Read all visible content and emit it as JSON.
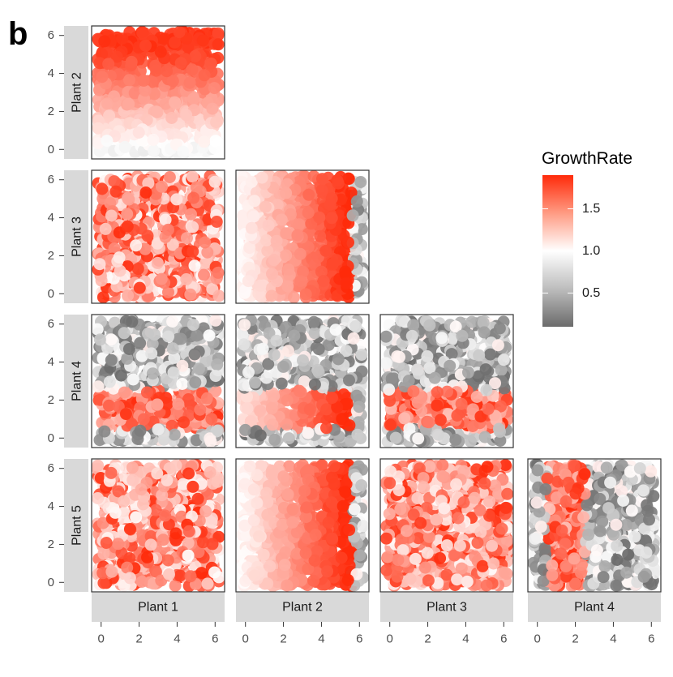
{
  "figure_label": "b",
  "legend": {
    "title": "GrowthRate",
    "ticks": [
      "0.5",
      "1.0",
      "1.5"
    ],
    "tick_values": [
      0.5,
      1.0,
      1.5
    ],
    "range": [
      0.1,
      1.9
    ],
    "colors": {
      "low": "#6b6b6b",
      "mid": "#ffffff",
      "high": "#ff2a0a"
    }
  },
  "chart_data": {
    "type": "scatter",
    "title": "",
    "description": "Pairwise facet grid (lower triangle). Rows: y-variable plant; columns: x-variable plant. Points colored by GrowthRate.",
    "row_labels": [
      "Plant 2",
      "Plant 3",
      "Plant 4",
      "Plant 5"
    ],
    "col_labels": [
      "Plant 1",
      "Plant 2",
      "Plant 3",
      "Plant 4"
    ],
    "xlim": [
      -0.5,
      6.5
    ],
    "ylim": [
      -0.5,
      6.5
    ],
    "x_ticks": [
      "0",
      "2",
      "4",
      "6"
    ],
    "x_tick_values": [
      0,
      2,
      4,
      6
    ],
    "y_ticks": [
      "0",
      "2",
      "4",
      "6"
    ],
    "y_tick_values": [
      0,
      2,
      4,
      6
    ],
    "panels": [
      {
        "row": "Plant 2",
        "col": "Plant 1",
        "pattern": "horizontal-gradient",
        "note": "color increases with y; red band near y=5"
      },
      {
        "row": "Plant 3",
        "col": "Plant 1",
        "pattern": "random-high",
        "note": "mixed, mostly red"
      },
      {
        "row": "Plant 3",
        "col": "Plant 2",
        "pattern": "vertical-gradient",
        "note": "color increases with x up to x=5; grey at x=6"
      },
      {
        "row": "Plant 4",
        "col": "Plant 1",
        "pattern": "horizontal-band",
        "band": [
          0.5,
          2.5
        ],
        "note": "red band at y 0.5-2.5"
      },
      {
        "row": "Plant 4",
        "col": "Plant 2",
        "pattern": "horizontal-band-gradient",
        "band": [
          0.5,
          2.5
        ]
      },
      {
        "row": "Plant 4",
        "col": "Plant 3",
        "pattern": "horizontal-band",
        "band": [
          0.5,
          2.5
        ]
      },
      {
        "row": "Plant 5",
        "col": "Plant 1",
        "pattern": "random-high"
      },
      {
        "row": "Plant 5",
        "col": "Plant 2",
        "pattern": "vertical-gradient"
      },
      {
        "row": "Plant 5",
        "col": "Plant 3",
        "pattern": "random-high"
      },
      {
        "row": "Plant 5",
        "col": "Plant 4",
        "pattern": "vertical-band",
        "band": [
          0.5,
          2.5
        ]
      }
    ]
  }
}
